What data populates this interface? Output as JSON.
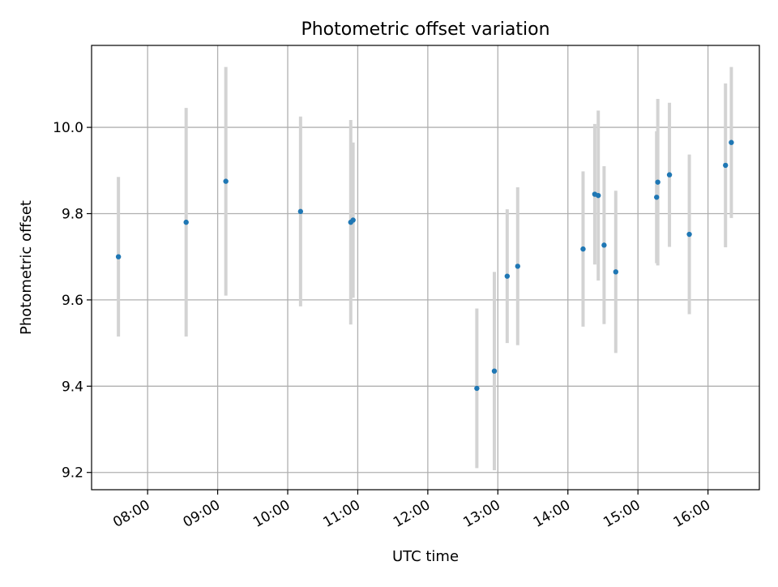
{
  "chart_data": {
    "type": "scatter",
    "title": "Photometric offset variation",
    "xlabel": "UTC time",
    "ylabel": "Photometric offset",
    "x_format": "HH:MM",
    "xlim": [
      "07:12",
      "16:44"
    ],
    "ylim": [
      9.16,
      10.19
    ],
    "x_ticks": [
      "08:00",
      "09:00",
      "10:00",
      "11:00",
      "12:00",
      "13:00",
      "14:00",
      "15:00",
      "16:00"
    ],
    "y_ticks": [
      "9.2",
      "9.4",
      "9.6",
      "9.8",
      "10.0"
    ],
    "grid": true,
    "colors": {
      "point": "#1f77b4",
      "errorbar": "#d3d3d3",
      "grid": "#b0b0b0",
      "axes": "#000000"
    },
    "points": [
      {
        "x": "07:35",
        "y": 9.7,
        "yerr": 0.185
      },
      {
        "x": "08:33",
        "y": 9.78,
        "yerr": 0.265
      },
      {
        "x": "09:07",
        "y": 9.875,
        "yerr": 0.265
      },
      {
        "x": "10:11",
        "y": 9.805,
        "yerr": 0.22
      },
      {
        "x": "10:54",
        "y": 9.78,
        "yerr": 0.237
      },
      {
        "x": "10:56",
        "y": 9.785,
        "yerr": 0.18
      },
      {
        "x": "12:42",
        "y": 9.395,
        "yerr": 0.185
      },
      {
        "x": "12:57",
        "y": 9.435,
        "yerr": 0.23
      },
      {
        "x": "13:08",
        "y": 9.655,
        "yerr": 0.155
      },
      {
        "x": "13:17",
        "y": 9.678,
        "yerr": 0.183
      },
      {
        "x": "14:13",
        "y": 9.718,
        "yerr": 0.18
      },
      {
        "x": "14:23",
        "y": 9.845,
        "yerr": 0.163
      },
      {
        "x": "14:26",
        "y": 9.842,
        "yerr": 0.197
      },
      {
        "x": "14:31",
        "y": 9.727,
        "yerr": 0.183
      },
      {
        "x": "14:41",
        "y": 9.665,
        "yerr": 0.188
      },
      {
        "x": "15:16",
        "y": 9.838,
        "yerr": 0.153
      },
      {
        "x": "15:17",
        "y": 9.873,
        "yerr": 0.193
      },
      {
        "x": "15:27",
        "y": 9.89,
        "yerr": 0.167
      },
      {
        "x": "15:44",
        "y": 9.752,
        "yerr": 0.185
      },
      {
        "x": "16:15",
        "y": 9.912,
        "yerr": 0.19
      },
      {
        "x": "16:20",
        "y": 9.965,
        "yerr": 0.175
      }
    ]
  }
}
